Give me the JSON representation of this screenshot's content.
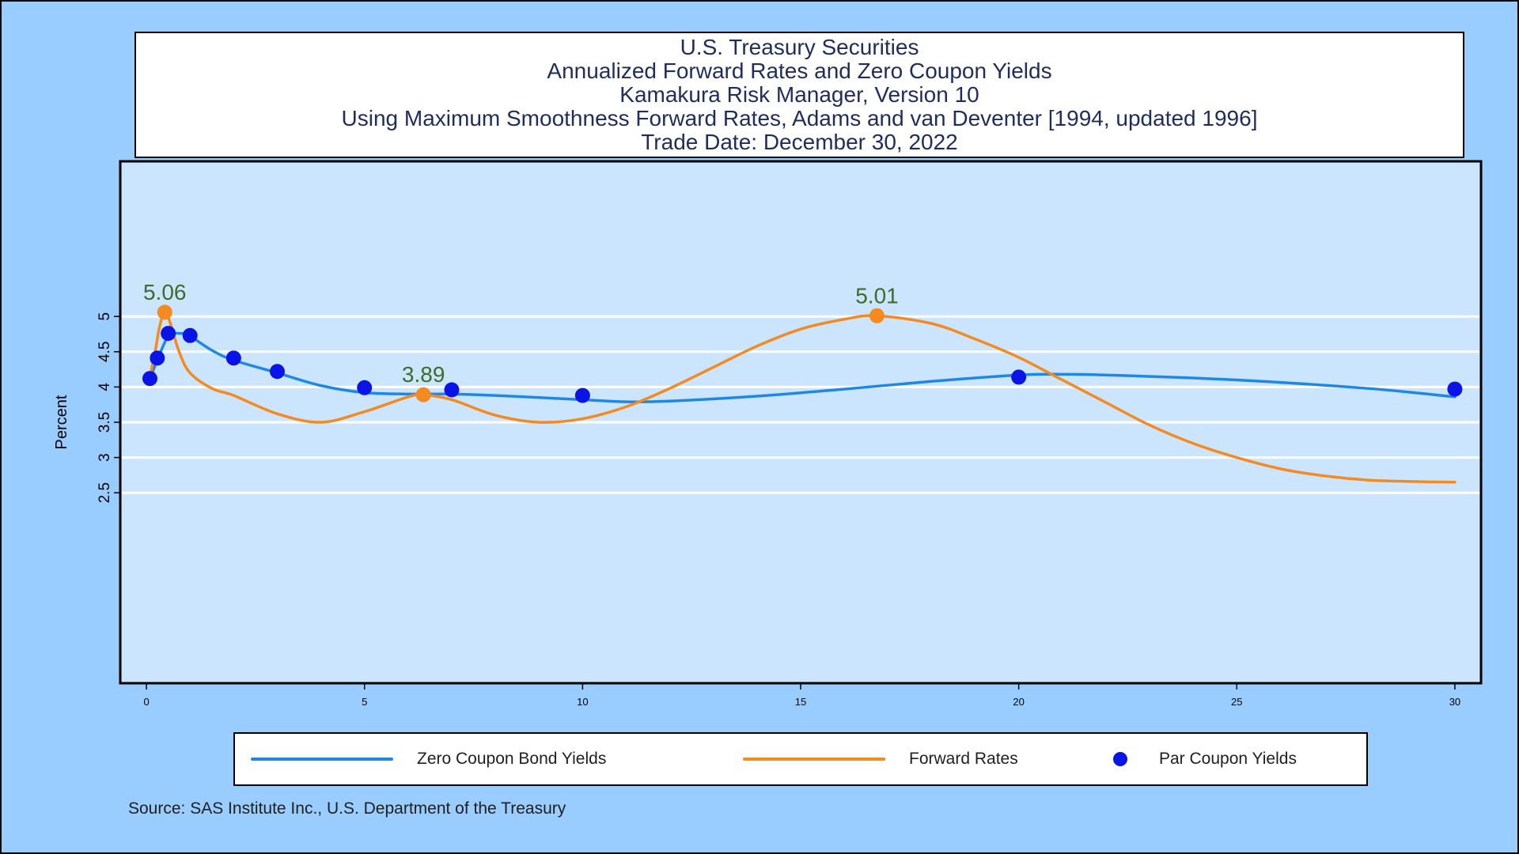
{
  "title_lines": [
    "U.S. Treasury Securities",
    "Annualized Forward Rates and Zero Coupon Yields",
    "Kamakura Risk Manager, Version 10",
    "Using Maximum Smoothness Forward Rates, Adams and van Deventer [1994, updated 1996]",
    "Trade Date:  December 30, 2022"
  ],
  "source": "Source: SAS Institute Inc., U.S. Department of the Treasury",
  "colors": {
    "background": "#99ccff",
    "plot_area": "#cce5ff",
    "zero_coupon": "#1e88e5",
    "forward": "#f58a1f",
    "par": "#0a14e6",
    "annotation": "#3f6b2a"
  },
  "legend": [
    {
      "label": "Zero Coupon Bond Yields",
      "type": "line",
      "color": "#1e88e5"
    },
    {
      "label": "Forward Rates",
      "type": "line",
      "color": "#f58a1f"
    },
    {
      "label": "Par Coupon Yields",
      "type": "dot",
      "color": "#0a14e6"
    }
  ],
  "chart_data": {
    "type": "line",
    "ylabel": "Percent",
    "xlabel": "",
    "xlim": [
      -0.6,
      30.6
    ],
    "ylim": [
      -0.2,
      7.2
    ],
    "x_ticks": [
      0,
      5,
      10,
      15,
      20,
      25,
      30
    ],
    "y_ticks": [
      2.5,
      3,
      3.5,
      4,
      4.5,
      5
    ],
    "y_tick_labels": [
      "2.5",
      "3",
      "3.5",
      "4",
      "4.5",
      "5"
    ],
    "grid": true,
    "legend_position": "bottom",
    "series": [
      {
        "name": "Zero Coupon Bond Yields",
        "type": "line",
        "color": "#1e88e5",
        "points": [
          [
            0.08,
            4.12
          ],
          [
            0.25,
            4.38
          ],
          [
            0.5,
            4.72
          ],
          [
            0.75,
            4.76
          ],
          [
            1,
            4.72
          ],
          [
            1.5,
            4.52
          ],
          [
            2,
            4.38
          ],
          [
            3,
            4.2
          ],
          [
            4,
            4.02
          ],
          [
            5,
            3.92
          ],
          [
            6,
            3.9
          ],
          [
            7,
            3.9
          ],
          [
            8,
            3.88
          ],
          [
            10,
            3.82
          ],
          [
            11,
            3.79
          ],
          [
            12,
            3.8
          ],
          [
            14,
            3.87
          ],
          [
            16,
            3.97
          ],
          [
            18,
            4.08
          ],
          [
            20,
            4.17
          ],
          [
            21,
            4.18
          ],
          [
            22,
            4.17
          ],
          [
            25,
            4.1
          ],
          [
            28,
            3.98
          ],
          [
            30,
            3.86
          ]
        ]
      },
      {
        "name": "Forward Rates",
        "type": "line",
        "color": "#f58a1f",
        "points": [
          [
            0.08,
            4.15
          ],
          [
            0.2,
            4.5
          ],
          [
            0.3,
            4.85
          ],
          [
            0.42,
            5.06
          ],
          [
            0.55,
            4.9
          ],
          [
            0.75,
            4.5
          ],
          [
            1,
            4.2
          ],
          [
            1.5,
            3.98
          ],
          [
            2,
            3.88
          ],
          [
            3,
            3.62
          ],
          [
            4,
            3.5
          ],
          [
            5,
            3.65
          ],
          [
            6,
            3.86
          ],
          [
            6.35,
            3.89
          ],
          [
            7,
            3.82
          ],
          [
            8,
            3.6
          ],
          [
            9,
            3.5
          ],
          [
            10,
            3.55
          ],
          [
            11,
            3.72
          ],
          [
            12,
            3.98
          ],
          [
            13,
            4.28
          ],
          [
            14,
            4.58
          ],
          [
            15,
            4.82
          ],
          [
            16,
            4.96
          ],
          [
            16.75,
            5.01
          ],
          [
            18,
            4.9
          ],
          [
            19,
            4.68
          ],
          [
            20,
            4.42
          ],
          [
            21,
            4.1
          ],
          [
            22,
            3.78
          ],
          [
            23,
            3.46
          ],
          [
            24,
            3.2
          ],
          [
            25,
            3.0
          ],
          [
            26,
            2.84
          ],
          [
            27,
            2.74
          ],
          [
            28,
            2.68
          ],
          [
            29,
            2.66
          ],
          [
            30,
            2.65
          ]
        ]
      },
      {
        "name": "Par Coupon Yields",
        "type": "scatter",
        "color": "#0a14e6",
        "points": [
          [
            0.08,
            4.12
          ],
          [
            0.25,
            4.41
          ],
          [
            0.5,
            4.76
          ],
          [
            1,
            4.73
          ],
          [
            2,
            4.41
          ],
          [
            3,
            4.22
          ],
          [
            5,
            3.99
          ],
          [
            7,
            3.96
          ],
          [
            10,
            3.88
          ],
          [
            20,
            4.14
          ],
          [
            30,
            3.97
          ]
        ]
      }
    ],
    "annotations": [
      {
        "x": 0.42,
        "y": 5.06,
        "label": "5.06"
      },
      {
        "x": 6.35,
        "y": 3.89,
        "label": "3.89"
      },
      {
        "x": 16.75,
        "y": 5.01,
        "label": "5.01"
      }
    ]
  }
}
